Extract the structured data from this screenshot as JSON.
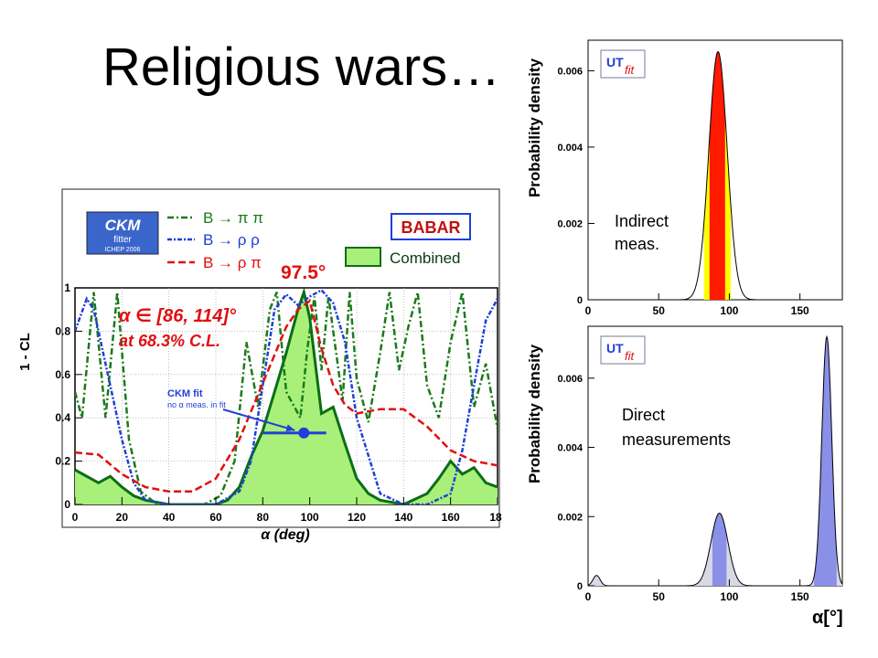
{
  "slide": {
    "title": "Religious wars…"
  },
  "colors": {
    "red": "#ff1a00",
    "yellow": "#ffff00",
    "blue_fill": "#8a8fe8",
    "grey_fill": "#d8d8e6",
    "green_fill": "#a8f07a",
    "green_line": "#0b6e16",
    "dark_green": "#1a7a1a",
    "blue_line": "#1f3fd6",
    "red_dash": "#e01010"
  },
  "chart_data": [
    {
      "type": "line",
      "logo": {
        "top": "CKM",
        "bottom": "fitter",
        "tag": "ICHEP 2006"
      },
      "experiment_logo": "BABAR",
      "ylabel": "1 - CL",
      "xlabel": "α   (deg)",
      "x_ticks": [
        "0",
        "20",
        "40",
        "60",
        "80",
        "100",
        "120",
        "140",
        "160",
        "18"
      ],
      "y_ticks": [
        "0",
        "0.2",
        "0.4",
        "0.6",
        "0.8",
        "1"
      ],
      "xlim": [
        0,
        180
      ],
      "ylim": [
        0,
        1
      ],
      "legend": [
        "B → π π",
        "B → ρ ρ",
        "B → ρ π",
        "Combined"
      ],
      "annotations": {
        "peak": "97.5°",
        "range_line1": "α ∈ [86, 114]°",
        "range_line2": "at 68.3% C.L.",
        "ckm_fit": "CKM fit",
        "ckm_fit_sub": "no α meas. in fit"
      },
      "series": [
        {
          "name": "Combined",
          "style": "filled",
          "x": [
            0,
            5,
            10,
            15,
            20,
            25,
            30,
            40,
            50,
            60,
            65,
            70,
            75,
            80,
            85,
            90,
            95,
            97.5,
            100,
            105,
            110,
            115,
            120,
            125,
            130,
            140,
            150,
            155,
            160,
            165,
            170,
            175,
            180
          ],
          "y": [
            0.16,
            0.13,
            0.1,
            0.13,
            0.08,
            0.04,
            0.02,
            0.0,
            0.0,
            0.0,
            0.02,
            0.08,
            0.22,
            0.34,
            0.52,
            0.7,
            0.9,
            0.98,
            0.86,
            0.42,
            0.45,
            0.28,
            0.12,
            0.05,
            0.02,
            0.0,
            0.05,
            0.12,
            0.2,
            0.14,
            0.17,
            0.1,
            0.08
          ]
        },
        {
          "name": "B → π π",
          "style": "dash-dot",
          "x": [
            0,
            3,
            8,
            13,
            18,
            23,
            28,
            35,
            45,
            55,
            62,
            68,
            73,
            78,
            83,
            86,
            88,
            90,
            93,
            96,
            99,
            102,
            105,
            108,
            111,
            114,
            117,
            120,
            125,
            130,
            134,
            138,
            142,
            146,
            150,
            155,
            160,
            165,
            170,
            175,
            180
          ],
          "y": [
            0.52,
            0.4,
            0.98,
            0.4,
            0.98,
            0.3,
            0.06,
            0.0,
            0.0,
            0.0,
            0.04,
            0.2,
            0.75,
            0.45,
            0.9,
            0.98,
            0.74,
            0.52,
            0.46,
            0.4,
            0.72,
            0.96,
            0.62,
            0.96,
            0.72,
            0.48,
            0.98,
            0.58,
            0.38,
            0.7,
            0.98,
            0.62,
            0.82,
            0.98,
            0.55,
            0.4,
            0.75,
            0.98,
            0.45,
            0.65,
            0.35
          ]
        },
        {
          "name": "B → ρ ρ",
          "style": "dash-dot-fine",
          "x": [
            0,
            5,
            8,
            12,
            16,
            20,
            25,
            30,
            40,
            50,
            60,
            70,
            75,
            80,
            85,
            90,
            95,
            100,
            105,
            110,
            115,
            120,
            130,
            140,
            150,
            160,
            165,
            170,
            175,
            180
          ],
          "y": [
            0.8,
            0.95,
            0.9,
            0.7,
            0.5,
            0.3,
            0.1,
            0.02,
            0.0,
            0.0,
            0.0,
            0.06,
            0.2,
            0.55,
            0.9,
            0.97,
            0.92,
            0.96,
            0.99,
            0.93,
            0.75,
            0.4,
            0.05,
            0.0,
            0.0,
            0.05,
            0.25,
            0.55,
            0.85,
            0.95
          ]
        },
        {
          "name": "B → ρ π",
          "style": "dashed",
          "x": [
            0,
            10,
            20,
            30,
            40,
            50,
            60,
            70,
            80,
            90,
            95,
            100,
            105,
            110,
            115,
            120,
            130,
            140,
            150,
            160,
            170,
            180
          ],
          "y": [
            0.24,
            0.23,
            0.14,
            0.08,
            0.06,
            0.06,
            0.12,
            0.3,
            0.56,
            0.82,
            0.9,
            0.94,
            0.72,
            0.55,
            0.46,
            0.42,
            0.44,
            0.44,
            0.36,
            0.25,
            0.2,
            0.18
          ]
        }
      ],
      "ckm_fit_point": {
        "x": 97.5,
        "xerr": [
          80,
          107
        ],
        "y": 0.33
      }
    },
    {
      "type": "area",
      "logo": {
        "ut": "UT",
        "fit": "fit"
      },
      "ylabel": "Probability density",
      "x_ticks": [
        "0",
        "50",
        "100",
        "150"
      ],
      "y_ticks": [
        "0",
        "0.002",
        "0.004",
        "0.006"
      ],
      "xlim": [
        0,
        180
      ],
      "ylim": [
        0,
        0.0068
      ],
      "label": "Indirect meas.",
      "label_lines": [
        "Indirect",
        "meas."
      ],
      "peak": {
        "mean": 92,
        "sigma": 6.5,
        "amplitude": 0.0065
      },
      "bands": {
        "outer_95": [
          82,
          101
        ],
        "inner_68": [
          86,
          97
        ]
      }
    },
    {
      "type": "area",
      "logo": {
        "ut": "UT",
        "fit": "fit"
      },
      "ylabel": "Probability density",
      "xlabel": "α[°]",
      "x_ticks": [
        "0",
        "50",
        "100",
        "150"
      ],
      "y_ticks": [
        "0",
        "0.002",
        "0.004",
        "0.006"
      ],
      "xlim": [
        0,
        180
      ],
      "ylim": [
        0,
        0.0075
      ],
      "label": "Direct measurements",
      "label_lines": [
        "Direct",
        "measurements"
      ],
      "peaks": [
        {
          "mean": 6,
          "sigma": 2.5,
          "amplitude": 0.0003
        },
        {
          "mean": 93,
          "sigma": 6,
          "amplitude": 0.0021
        },
        {
          "mean": 169,
          "sigma": 3.5,
          "amplitude": 0.0072
        }
      ],
      "bands": {
        "region_1": [
          88,
          98
        ],
        "region_2": [
          160,
          176
        ]
      }
    }
  ]
}
